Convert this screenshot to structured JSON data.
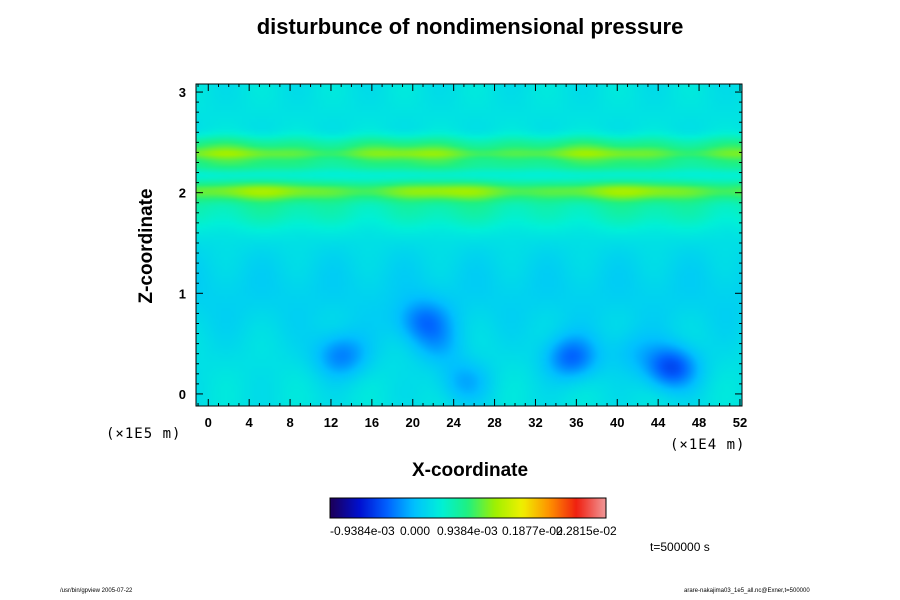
{
  "chart_data": {
    "type": "heatmap",
    "title": "disturbunce of nondimensional pressure",
    "xlabel": "X-coordinate",
    "ylabel": "Z-coordinate",
    "x_scale_label": "(×1E4 m)",
    "y_scale_label": "(×1E5 m)",
    "x_ticks": [
      "0",
      "4",
      "8",
      "12",
      "16",
      "20",
      "24",
      "28",
      "32",
      "36",
      "40",
      "44",
      "48",
      "52"
    ],
    "y_ticks": [
      "0",
      "1",
      "2",
      "3"
    ],
    "xlim": [
      -1.2,
      52.2
    ],
    "ylim": [
      -0.12,
      3.08
    ],
    "colorbar_labels": [
      "-0.9384e-03",
      "0.000",
      "0.9384e-03",
      "0.1877e-02",
      "0.2815e-02"
    ],
    "colorbar_values": [
      -0.0009384,
      0.0,
      0.0009384,
      0.001877,
      0.002815
    ],
    "vmin": -0.0019,
    "vmax": 0.0038,
    "background_value": 0.00022,
    "bands": [
      {
        "z": 2.48,
        "width": 0.09,
        "amp": 0.00055
      },
      {
        "z": 2.38,
        "width": 0.07,
        "amp": 0.00085
      },
      {
        "z": 2.27,
        "width": 0.07,
        "amp": 0.00055
      },
      {
        "z": 2.02,
        "width": 0.1,
        "amp": 0.0009
      },
      {
        "z": 1.85,
        "width": 0.22,
        "amp": 0.0004
      }
    ],
    "lows": [
      {
        "x": 13.0,
        "z": 0.38,
        "value": -0.00075
      },
      {
        "x": 21.0,
        "z": 0.72,
        "value": -0.0007
      },
      {
        "x": 22.5,
        "z": 0.48,
        "value": -0.00035
      },
      {
        "x": 25.0,
        "z": 0.12,
        "value": -0.0005
      },
      {
        "x": 35.5,
        "z": 0.36,
        "value": -0.0009
      },
      {
        "x": 41.5,
        "z": 0.42,
        "value": -0.0003
      },
      {
        "x": 45.3,
        "z": 0.26,
        "value": -0.0011
      }
    ],
    "time_label": "t=500000 s"
  },
  "footer": {
    "left": "/usr/bin/gpview 2005-07-22",
    "right": "arare-nakajima03_1e5_all.nc@Exner,t=500000"
  },
  "colors": {
    "colormap": [
      "#1a0060",
      "#0010d0",
      "#0060ff",
      "#00c0ff",
      "#00f0d8",
      "#20f080",
      "#a0f000",
      "#f0f000",
      "#ff9000",
      "#f02010",
      "#f09090"
    ]
  }
}
